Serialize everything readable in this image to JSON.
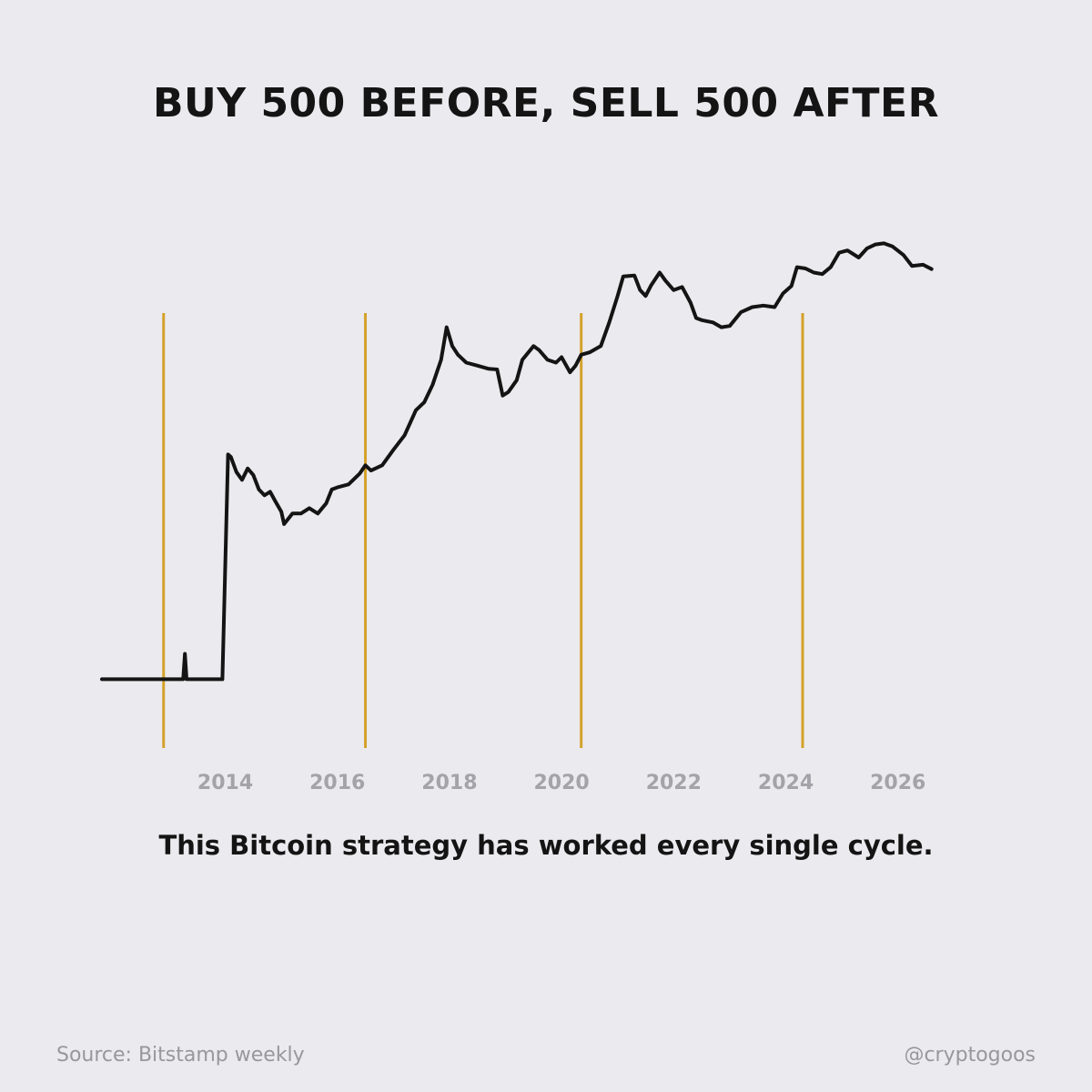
{
  "title": "BUY 500 BEFORE, SELL 500 AFTER",
  "subtitle": "This Bitcoin strategy has worked every single cycle.",
  "source": "Source: Bitstamp weekly",
  "handle": "@cryptogoos",
  "colors": {
    "background": "#ebeaee",
    "line": "#141414",
    "markers": "#d4a22b",
    "ticks": "#a4a3a9"
  },
  "chart_data": {
    "type": "line",
    "title": "BUY 500 BEFORE, SELL 500 AFTER",
    "xlabel": "",
    "ylabel": "",
    "y_scale": "log",
    "y_axis_shown": false,
    "xlim": [
      2011.8,
      2026.8
    ],
    "ylim": [
      1,
      170000
    ],
    "x_ticks": [
      2014,
      2016,
      2018,
      2020,
      2022,
      2024,
      2026
    ],
    "x_tick_labels": [
      "2014",
      "2016",
      "2018",
      "2020",
      "2022",
      "2024",
      "2026"
    ],
    "markers": [
      2012.9,
      2016.5,
      2020.35,
      2024.3
    ],
    "series": [
      {
        "x": [
          2011.8,
          2013.1,
          2013.25,
          2013.28,
          2013.31,
          2013.95,
          2014.05,
          2014.1,
          2014.2,
          2014.3,
          2014.4,
          2014.5,
          2014.6,
          2014.7,
          2014.8,
          2014.9,
          2015.0,
          2015.05,
          2015.2,
          2015.35,
          2015.5,
          2015.65,
          2015.8,
          2015.9,
          2016.0,
          2016.2,
          2016.4,
          2016.5,
          2016.6,
          2016.8,
          2017.0,
          2017.2,
          2017.4,
          2017.55,
          2017.7,
          2017.85,
          2017.95,
          2018.05,
          2018.15,
          2018.3,
          2018.5,
          2018.7,
          2018.85,
          2018.95,
          2019.05,
          2019.2,
          2019.3,
          2019.5,
          2019.6,
          2019.75,
          2019.9,
          2020.0,
          2020.15,
          2020.25,
          2020.35,
          2020.5,
          2020.7,
          2020.85,
          2021.0,
          2021.1,
          2021.3,
          2021.4,
          2021.5,
          2021.6,
          2021.75,
          2021.85,
          2022.0,
          2022.15,
          2022.3,
          2022.4,
          2022.5,
          2022.7,
          2022.85,
          2023.0,
          2023.2,
          2023.4,
          2023.6,
          2023.8,
          2023.95,
          2024.1,
          2024.2,
          2024.35,
          2024.5,
          2024.65,
          2024.8,
          2024.95,
          2025.1,
          2025.3,
          2025.45,
          2025.6,
          2025.75,
          2025.9,
          2026.1,
          2026.25,
          2026.45,
          2026.6
        ],
        "y": [
          5,
          5,
          5,
          9,
          5,
          5,
          900,
          850,
          600,
          500,
          650,
          560,
          400,
          350,
          380,
          300,
          240,
          180,
          230,
          230,
          260,
          230,
          290,
          400,
          420,
          450,
          580,
          700,
          620,
          700,
          1000,
          1400,
          2500,
          3000,
          4500,
          8000,
          17000,
          11000,
          9000,
          7500,
          7000,
          6500,
          6400,
          3500,
          3800,
          5000,
          8000,
          11000,
          10000,
          8000,
          7500,
          8500,
          6000,
          7000,
          9000,
          9500,
          11000,
          19000,
          35000,
          55000,
          56000,
          40000,
          35000,
          45000,
          60000,
          50000,
          40000,
          43000,
          30000,
          21000,
          20000,
          19000,
          17000,
          17500,
          24000,
          27000,
          28000,
          27000,
          37000,
          44000,
          68000,
          66000,
          60000,
          58000,
          68000,
          95000,
          100000,
          85000,
          105000,
          115000,
          118000,
          110000,
          90000,
          70000,
          72000,
          65000
        ]
      }
    ]
  }
}
